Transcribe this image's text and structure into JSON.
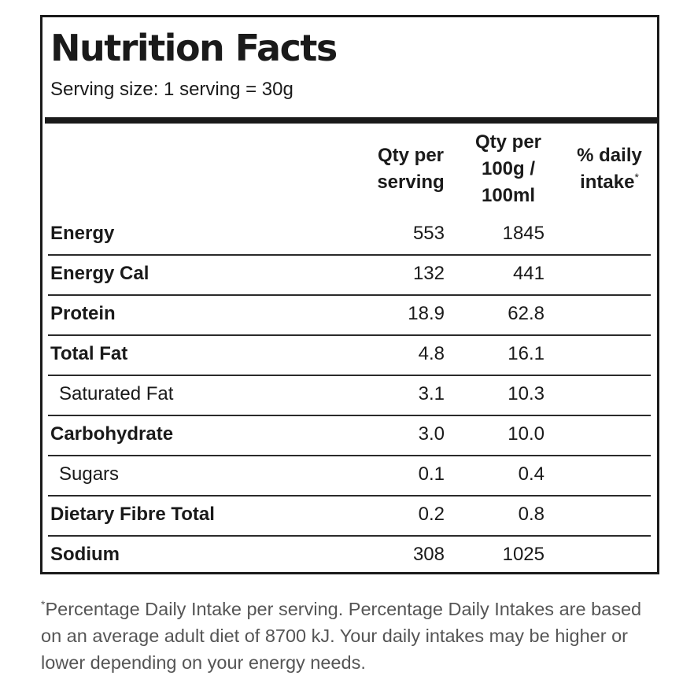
{
  "panel": {
    "title": "Nutrition Facts",
    "serving_size": "Serving size: 1 serving = 30g"
  },
  "columns": {
    "per_serving": "Qty per serving",
    "per_100": "Qty per 100g / 100ml",
    "daily_intake": "% daily intake",
    "daily_intake_marker": "*"
  },
  "rows": [
    {
      "name": "Energy",
      "per_serving": "553",
      "per_100": "1845",
      "indent": false
    },
    {
      "name": "Energy Cal",
      "per_serving": "132",
      "per_100": "441",
      "indent": false
    },
    {
      "name": "Protein",
      "per_serving": "18.9",
      "per_100": "62.8",
      "indent": false
    },
    {
      "name": "Total Fat",
      "per_serving": "4.8",
      "per_100": "16.1",
      "indent": false
    },
    {
      "name": "Saturated Fat",
      "per_serving": "3.1",
      "per_100": "10.3",
      "indent": true
    },
    {
      "name": "Carbohydrate",
      "per_serving": "3.0",
      "per_100": "10.0",
      "indent": false
    },
    {
      "name": "Sugars",
      "per_serving": "0.1",
      "per_100": "0.4",
      "indent": true
    },
    {
      "name": "Dietary Fibre Total",
      "per_serving": "0.2",
      "per_100": "0.8",
      "indent": false
    },
    {
      "name": "Sodium",
      "per_serving": "308",
      "per_100": "1025",
      "indent": false
    }
  ],
  "footnote": {
    "marker": "*",
    "text": "Percentage Daily Intake per serving. Percentage Daily Intakes are based on an average adult diet of 8700 kJ. Your daily intakes may be higher or lower depending on your energy needs."
  },
  "colors": {
    "border": "#1a1a1a",
    "text": "#1a1a1a",
    "footnote_text": "#555555"
  }
}
